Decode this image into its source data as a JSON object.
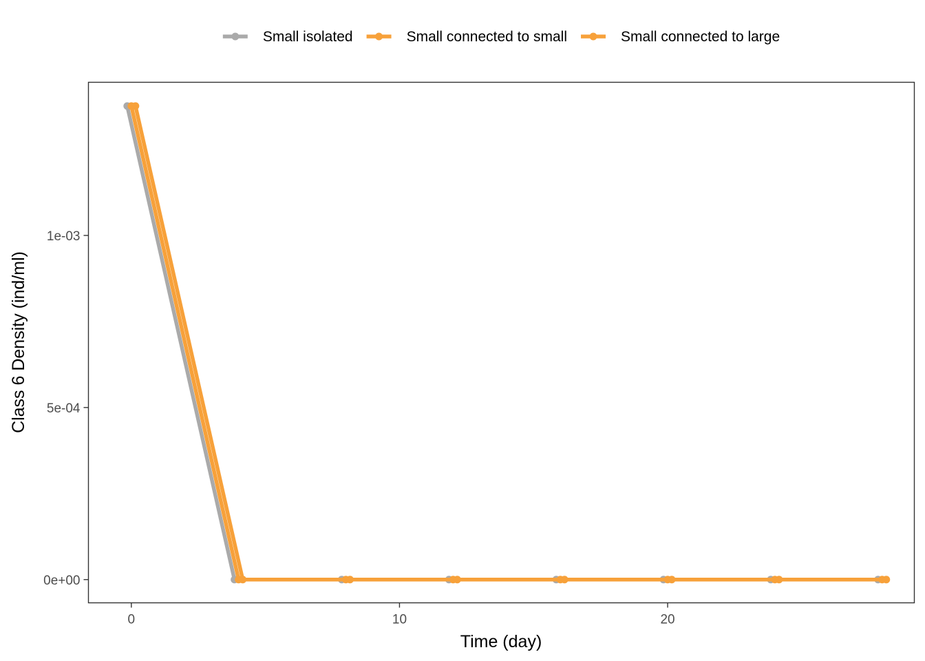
{
  "chart_data": {
    "type": "line",
    "xlabel": "Time (day)",
    "ylabel": "Class 6 Density (ind/ml)",
    "xlim": [
      -1.6,
      29.2
    ],
    "ylim": [
      -6.75e-05,
      0.001445
    ],
    "x_ticks": [
      0,
      10,
      20
    ],
    "x_tick_labels": [
      "0",
      "10",
      "20"
    ],
    "y_ticks": [
      0,
      0.0005,
      0.001
    ],
    "y_tick_labels": [
      "0e+00",
      "5e-04",
      "1e-03"
    ],
    "grid": false,
    "legend_position": "top",
    "x": [
      0,
      4,
      8,
      12,
      16,
      20,
      24,
      28
    ],
    "series": [
      {
        "name": "Small isolated",
        "color": "#aaaaaa",
        "values": [
          0.001376,
          0,
          0,
          0,
          0,
          0,
          0,
          0
        ]
      },
      {
        "name": "Small connected to small",
        "color": "#f7a13a",
        "values": [
          0.001376,
          0,
          0,
          0,
          0,
          0,
          0,
          0
        ]
      },
      {
        "name": "Small connected to large",
        "color": "#f7a13a",
        "values": [
          0.001376,
          0,
          0,
          0,
          0,
          0,
          0,
          0
        ]
      }
    ]
  }
}
